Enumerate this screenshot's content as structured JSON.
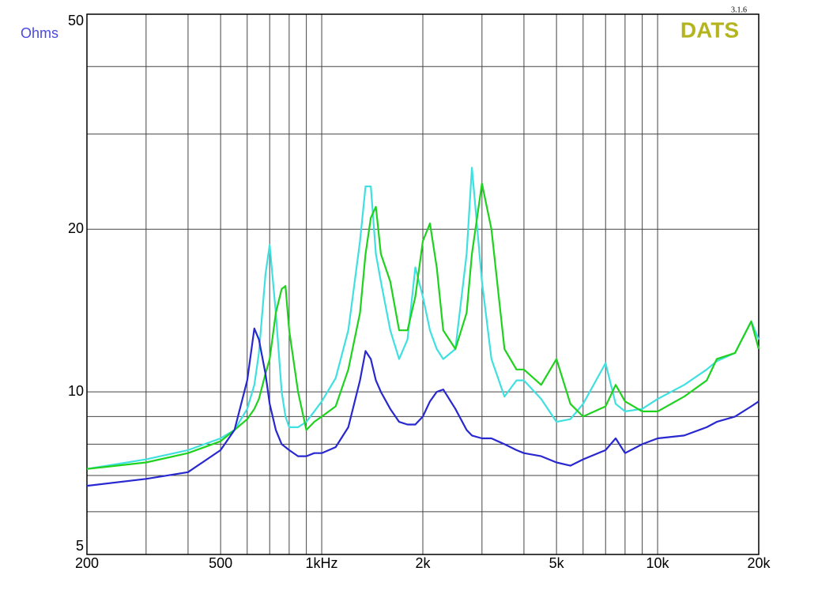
{
  "chart_data": {
    "type": "line",
    "ylabel": "Ohms",
    "brand": "DATS",
    "version": "3.1.6",
    "log_x": true,
    "log_y": true,
    "grid": true,
    "xlim": [
      200,
      20000
    ],
    "ylim": [
      5,
      50
    ],
    "xticks": [
      200,
      500,
      {
        "value": 1000,
        "label": "1kHz"
      },
      {
        "value": 2000,
        "label": "2k"
      },
      {
        "value": 5000,
        "label": "5k"
      },
      {
        "value": 10000,
        "label": "10k"
      },
      {
        "value": 20000,
        "label": "20k"
      }
    ],
    "xminor": [
      300,
      400,
      600,
      700,
      800,
      900,
      3000,
      4000,
      6000,
      7000,
      8000,
      9000
    ],
    "yticks": [
      5,
      10,
      20,
      50
    ],
    "yminor": [
      6,
      7,
      8,
      9,
      30,
      40
    ],
    "x": [
      200,
      300,
      400,
      500,
      550,
      600,
      630,
      650,
      680,
      700,
      730,
      760,
      780,
      800,
      850,
      900,
      950,
      1000,
      1100,
      1200,
      1300,
      1350,
      1400,
      1450,
      1500,
      1600,
      1700,
      1800,
      1900,
      2000,
      2100,
      2200,
      2300,
      2500,
      2700,
      2800,
      3000,
      3200,
      3500,
      3800,
      4000,
      4500,
      5000,
      5500,
      6000,
      7000,
      7500,
      8000,
      9000,
      10000,
      12000,
      14000,
      15000,
      17000,
      19000,
      20000
    ],
    "series": [
      {
        "color": "#40e0e0",
        "values": [
          7.2,
          7.5,
          7.8,
          8.2,
          8.5,
          9.3,
          10.3,
          11.8,
          16.5,
          18.7,
          14,
          10,
          9,
          8.6,
          8.6,
          8.8,
          9.2,
          9.6,
          10.6,
          13,
          19,
          24,
          24,
          18,
          16,
          13,
          11.5,
          12.5,
          17,
          15,
          13,
          12,
          11.5,
          12,
          18,
          26,
          16,
          11.5,
          9.8,
          10.5,
          10.5,
          9.7,
          8.8,
          8.9,
          9.5,
          11.3,
          9.5,
          9.2,
          9.3,
          9.7,
          10.3,
          11,
          11.4,
          11.8,
          13.5,
          12.5
        ]
      },
      {
        "color": "#1ed21e",
        "values": [
          7.2,
          7.4,
          7.7,
          8.1,
          8.5,
          8.9,
          9.3,
          9.7,
          10.8,
          11.5,
          14,
          15.5,
          15.7,
          13,
          10,
          8.5,
          8.8,
          9,
          9.4,
          11,
          14,
          18,
          21,
          22,
          18,
          16,
          13,
          13,
          15,
          19,
          20.5,
          17,
          13,
          12,
          14,
          18,
          24.3,
          20,
          12,
          11,
          11,
          10.3,
          11.5,
          9.5,
          9,
          9.4,
          10.3,
          9.6,
          9.2,
          9.2,
          9.8,
          10.5,
          11.5,
          11.8,
          13.5,
          12
        ]
      },
      {
        "color": "#2828d0",
        "values": [
          6.7,
          6.9,
          7.1,
          7.8,
          8.5,
          10.5,
          13.1,
          12.5,
          10.8,
          9.5,
          8.5,
          8.0,
          7.9,
          7.8,
          7.6,
          7.6,
          7.7,
          7.7,
          7.9,
          8.6,
          10.5,
          11.9,
          11.5,
          10.5,
          10,
          9.3,
          8.8,
          8.7,
          8.7,
          9.0,
          9.6,
          10.0,
          10.1,
          9.3,
          8.5,
          8.3,
          8.2,
          8.2,
          8.0,
          7.8,
          7.7,
          7.6,
          7.4,
          7.3,
          7.5,
          7.8,
          8.2,
          7.7,
          8.0,
          8.2,
          8.3,
          8.6,
          8.8,
          9.0,
          9.4,
          9.6
        ]
      }
    ]
  }
}
